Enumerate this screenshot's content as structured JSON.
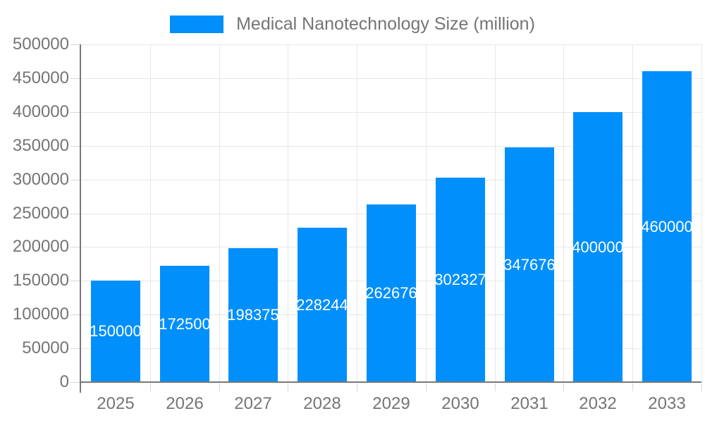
{
  "chart_data": {
    "type": "bar",
    "title": "Medical Nanotechnology Size (million)",
    "categories": [
      "2025",
      "2026",
      "2027",
      "2028",
      "2029",
      "2030",
      "2031",
      "2032",
      "2033"
    ],
    "series": [
      {
        "name": "Medical Nanotechnology Size (million)",
        "values": [
          150000,
          172500,
          198375,
          228244,
          262676,
          302327,
          347676,
          400000,
          460000
        ]
      }
    ],
    "data_labels": [
      "150000",
      "172500",
      "198375",
      "228244",
      "262676",
      "302327",
      "347676",
      "400000",
      "460000"
    ],
    "xlabel": "",
    "ylabel": "",
    "ylim": [
      0,
      500000
    ],
    "y_ticks": [
      0,
      50000,
      100000,
      150000,
      200000,
      250000,
      300000,
      350000,
      400000,
      450000,
      500000
    ],
    "grid": true,
    "legend_position": "top",
    "colors": {
      "bar": "#008FFB",
      "data_label": "#FFFFFF",
      "axis_text": "#757575",
      "gridline": "#E7E7E7",
      "axis_line": "#787878",
      "tick": "#D6D6D6",
      "background": "#FFFFFF"
    }
  }
}
